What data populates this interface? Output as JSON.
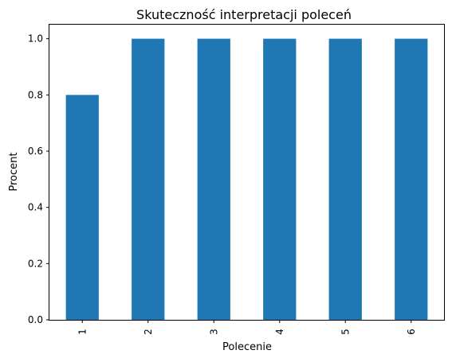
{
  "chart_data": {
    "type": "bar",
    "title": "Skuteczność interpretacji poleceń",
    "xlabel": "Polecenie",
    "ylabel": "Procent",
    "categories": [
      "1",
      "2",
      "3",
      "4",
      "5",
      "6"
    ],
    "values": [
      0.8,
      1.0,
      1.0,
      1.0,
      1.0,
      1.0
    ],
    "ylim": [
      0,
      1.05
    ],
    "yticks": [
      "0.0",
      "0.2",
      "0.4",
      "0.6",
      "0.8",
      "1.0"
    ],
    "bar_color": "#1f77b4",
    "grid": false,
    "x_tick_rotation": "vertical"
  }
}
